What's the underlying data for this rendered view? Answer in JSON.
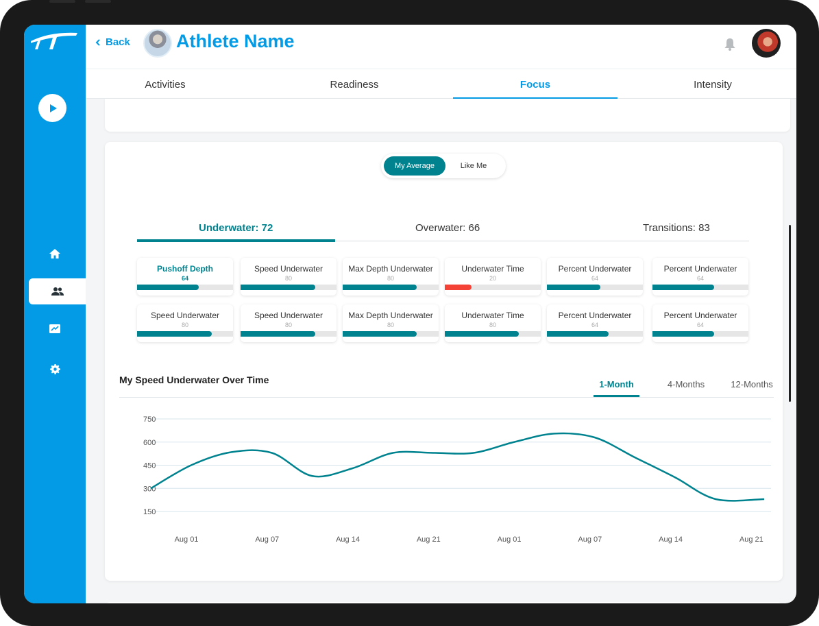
{
  "header": {
    "back_label": "Back",
    "athlete_name": "Athlete Name"
  },
  "sidebar": {
    "items": [
      {
        "icon": "play-icon"
      },
      {
        "icon": "home-icon"
      },
      {
        "icon": "people-icon",
        "active": true
      },
      {
        "icon": "inbox-icon"
      },
      {
        "icon": "gear-icon"
      }
    ]
  },
  "tabs": [
    {
      "label": "Activities"
    },
    {
      "label": "Readiness"
    },
    {
      "label": "Focus",
      "active": true
    },
    {
      "label": "Intensity"
    }
  ],
  "toggle": {
    "options": [
      {
        "label": "My Average",
        "active": true
      },
      {
        "label": "Like Me"
      }
    ]
  },
  "subtabs": [
    {
      "label": "Underwater: 72",
      "active": true
    },
    {
      "label": "Overwater: 66"
    },
    {
      "label": "Transitions: 83"
    }
  ],
  "metrics": [
    {
      "label": "Pushoff Depth",
      "value": "64",
      "level": 0.64,
      "active": true
    },
    {
      "label": "Speed Underwater",
      "value": "80",
      "level": 0.78
    },
    {
      "label": "Max Depth Underwater",
      "value": "80",
      "level": 0.77
    },
    {
      "label": "Underwater Time",
      "value": "20",
      "level": 0.28,
      "alert": true
    },
    {
      "label": "Percent Underwater",
      "value": "64",
      "level": 0.56
    },
    {
      "label": "Percent Underwater",
      "value": "64",
      "level": 0.64
    },
    {
      "label": "Speed Underwater",
      "value": "80",
      "level": 0.78
    },
    {
      "label": "Speed Underwater",
      "value": "80",
      "level": 0.78
    },
    {
      "label": "Max Depth Underwater",
      "value": "80",
      "level": 0.77
    },
    {
      "label": "Underwater Time",
      "value": "80",
      "level": 0.77
    },
    {
      "label": "Percent Underwater",
      "value": "64",
      "level": 0.64
    },
    {
      "label": "Percent Underwater",
      "value": "64",
      "level": 0.64
    }
  ],
  "chart_section": {
    "title": "My Speed Underwater Over Time",
    "ranges": [
      {
        "label": "1-Month",
        "active": true
      },
      {
        "label": "4-Months"
      },
      {
        "label": "12-Months"
      }
    ]
  },
  "colors": {
    "brand": "#039be5",
    "accent": "#00838f",
    "alert": "#f44336"
  },
  "chart_data": {
    "type": "line",
    "title": "My Speed Underwater Over Time",
    "x": [
      "Aug 01",
      "Aug 07",
      "Aug 14",
      "Aug 21",
      "Aug 01",
      "Aug 07",
      "Aug 14",
      "Aug 21"
    ],
    "y_ticks": [
      750,
      600,
      450,
      300,
      150
    ],
    "ylim": [
      150,
      750
    ],
    "grid": true,
    "series": [
      {
        "x": [
          0,
          0.5,
          1.0,
          1.5,
          2.0,
          2.5,
          3.0,
          3.5,
          4.0,
          4.5,
          5.0,
          5.5,
          6.0,
          6.5,
          7.0,
          7.6
        ],
        "y": [
          300,
          450,
          535,
          530,
          380,
          430,
          530,
          530,
          530,
          600,
          655,
          630,
          500,
          370,
          230,
          230
        ]
      }
    ]
  }
}
